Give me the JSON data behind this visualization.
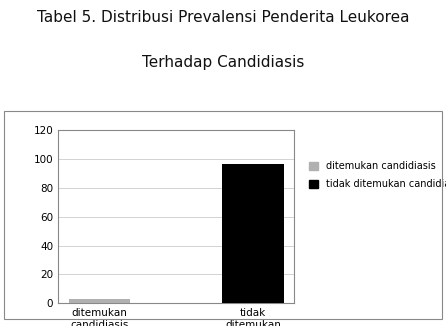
{
  "title_line1": "Tabel 5. Distribusi Prevalensi Penderita Leukorea",
  "title_line2": "Terhadap Candidiasis",
  "categories": [
    "ditemukan\ncandidiasis",
    "tidak\nditemukan\ncandidiasis"
  ],
  "bar_values": [
    3,
    97
  ],
  "bar_colors": [
    "#b0b0b0",
    "#000000"
  ],
  "legend_labels": [
    "ditemukan candidiasis",
    "tidak ditemukan candidiasis"
  ],
  "legend_colors": [
    "#b0b0b0",
    "#000000"
  ],
  "ylim": [
    0,
    120
  ],
  "yticks": [
    0,
    20,
    40,
    60,
    80,
    100,
    120
  ],
  "bar_width": 0.4,
  "legend_fontsize": 7,
  "tick_fontsize": 7.5,
  "title_fontsize": 11,
  "background_color": "#ffffff",
  "plot_bg_color": "#ffffff",
  "grid_color": "#cccccc",
  "border_color": "#888888"
}
